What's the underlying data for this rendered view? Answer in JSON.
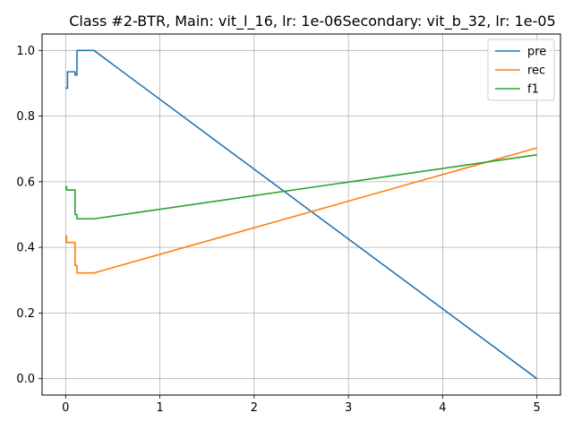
{
  "chart_data": {
    "type": "line",
    "title": "Class #2-BTR, Main: vit_l_16, lr: 1e-06Secondary: vit_b_32, lr: 1e-05",
    "xlabel": "",
    "ylabel": "",
    "xlim": [
      -0.25,
      5.25
    ],
    "ylim": [
      -0.05,
      1.05
    ],
    "x_ticks": [
      0,
      1,
      2,
      3,
      4,
      5
    ],
    "y_ticks": [
      0.0,
      0.2,
      0.4,
      0.6,
      0.8,
      1.0
    ],
    "x_tick_labels": [
      "0",
      "1",
      "2",
      "3",
      "4",
      "5"
    ],
    "y_tick_labels": [
      "0.0",
      "0.2",
      "0.4",
      "0.6",
      "0.8",
      "1.0"
    ],
    "grid": true,
    "legend_position": "top-right",
    "series": [
      {
        "name": "pre",
        "color": "#1f77b4",
        "points": [
          [
            0.0,
            0.885
          ],
          [
            0.02,
            0.885
          ],
          [
            0.02,
            0.935
          ],
          [
            0.1,
            0.935
          ],
          [
            0.1,
            0.925
          ],
          [
            0.12,
            0.925
          ],
          [
            0.12,
            1.0
          ],
          [
            0.3,
            1.0
          ],
          [
            5.0,
            0.0
          ]
        ]
      },
      {
        "name": "rec",
        "color": "#ff7f0e",
        "points": [
          [
            0.0,
            0.435
          ],
          [
            0.01,
            0.435
          ],
          [
            0.01,
            0.415
          ],
          [
            0.1,
            0.415
          ],
          [
            0.1,
            0.345
          ],
          [
            0.12,
            0.345
          ],
          [
            0.12,
            0.322
          ],
          [
            0.3,
            0.322
          ],
          [
            5.0,
            0.703
          ]
        ]
      },
      {
        "name": "f1",
        "color": "#2ca02c",
        "points": [
          [
            0.0,
            0.585
          ],
          [
            0.01,
            0.585
          ],
          [
            0.01,
            0.575
          ],
          [
            0.1,
            0.575
          ],
          [
            0.1,
            0.5
          ],
          [
            0.12,
            0.5
          ],
          [
            0.12,
            0.487
          ],
          [
            0.3,
            0.487
          ],
          [
            5.0,
            0.682
          ]
        ]
      }
    ]
  }
}
